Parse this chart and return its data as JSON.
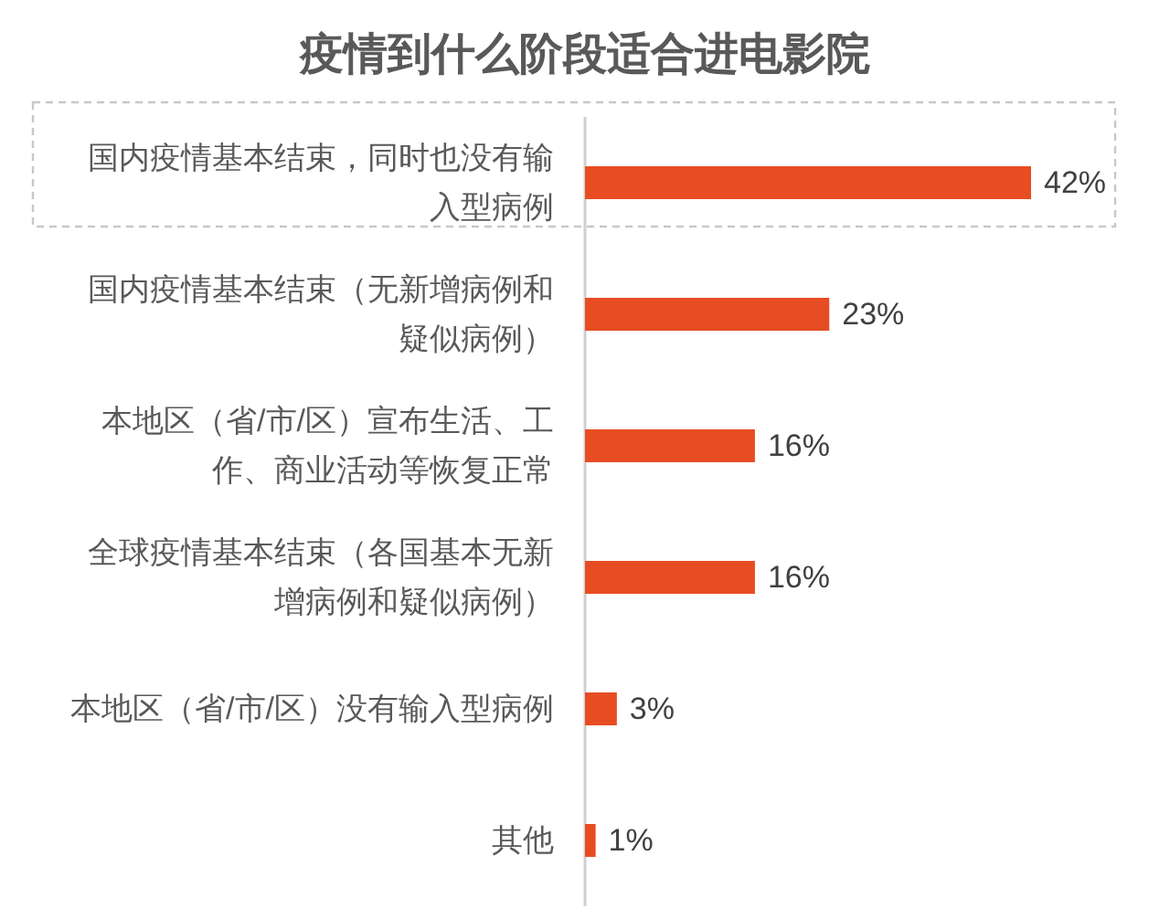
{
  "chart_data": {
    "type": "bar",
    "orientation": "horizontal",
    "title": "疫情到什么阶段适合进电影院",
    "categories": [
      "国内疫情基本结束，同时也没有输入型病例",
      "国内疫情基本结束（无新增病例和疑似病例）",
      "本地区（省/市/区）宣布生活、工作、商业活动等恢复正常",
      "全球疫情基本结束（各国基本无新增病例和疑似病例）",
      "本地区（省/市/区）没有输入型病例",
      "其他"
    ],
    "values": [
      42,
      23,
      16,
      16,
      3,
      1
    ],
    "value_labels": [
      "42%",
      "23%",
      "16%",
      "16%",
      "3%",
      "1%"
    ],
    "color": "#e84c22",
    "tick_labels": "y"
  }
}
